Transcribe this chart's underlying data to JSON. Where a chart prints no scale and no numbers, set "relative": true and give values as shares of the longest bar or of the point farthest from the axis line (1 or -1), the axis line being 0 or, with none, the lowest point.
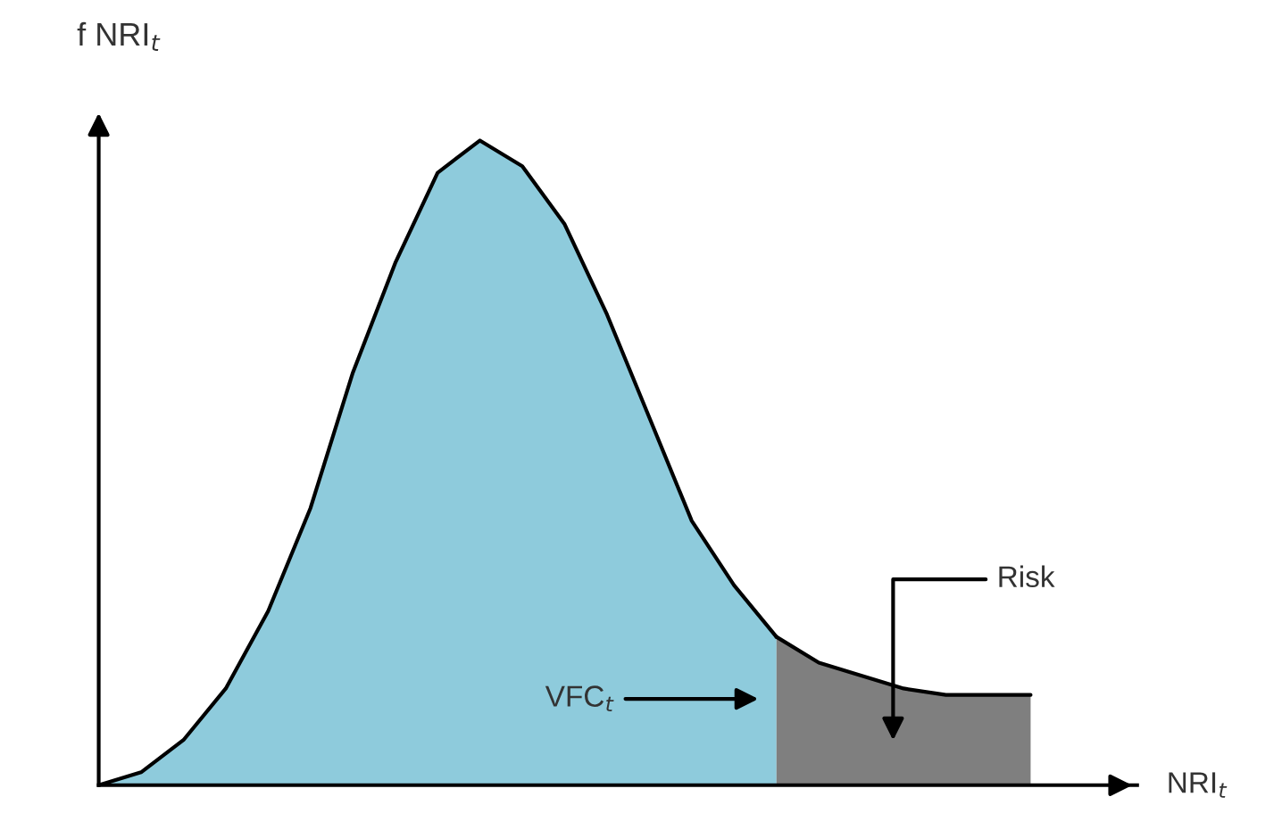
{
  "chart_data": {
    "type": "area",
    "relative": true,
    "xlabel": "NRI$_{t}$",
    "ylabel": "f NRI$_{t}$",
    "categories": [
      null,
      null,
      null,
      null,
      null,
      null,
      null,
      null,
      null,
      null,
      null,
      null,
      null,
      null,
      null,
      null,
      null,
      null,
      null,
      null,
      null,
      null,
      null
    ],
    "series": [
      {
        "color": "#8ecbdc",
        "values": [
          0,
          0.02,
          0.07,
          0.15,
          0.27,
          0.43,
          0.64,
          0.81,
          0.95,
          1,
          0.96,
          0.87,
          0.73,
          0.57,
          0.41,
          0.31,
          0.23,
          null,
          null,
          null,
          null,
          null,
          null
        ]
      },
      {
        "color": "#7f7f7f",
        "values": [
          null,
          null,
          null,
          null,
          null,
          null,
          null,
          null,
          null,
          null,
          null,
          null,
          null,
          null,
          null,
          null,
          0.23,
          0.19,
          0.17,
          0.15,
          0.14,
          0.14,
          0.14
        ]
      }
    ],
    "annotations": [
      "VFC$_{t}$",
      "Risk"
    ],
    "legend": false
  }
}
